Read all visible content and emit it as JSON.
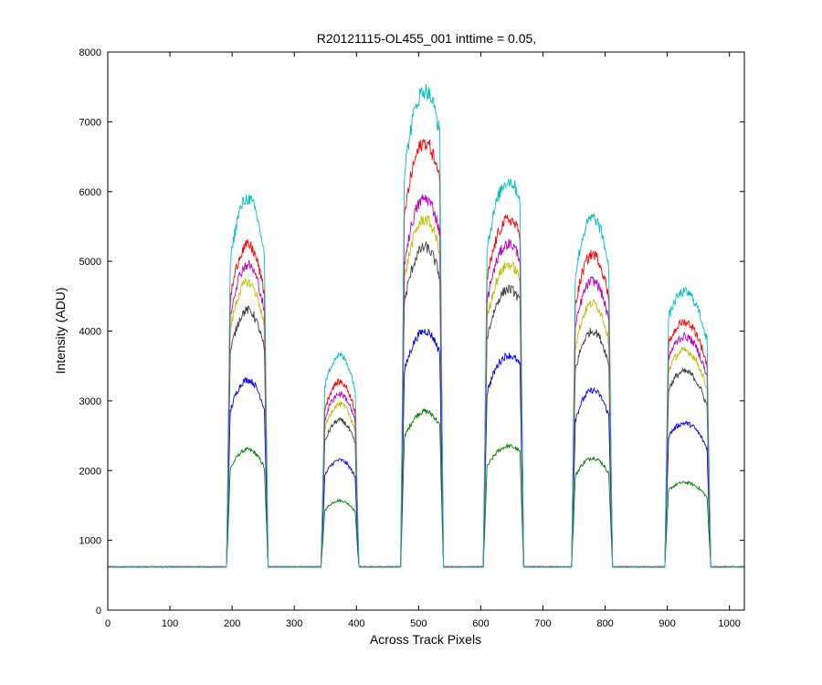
{
  "chart_data": {
    "type": "line",
    "title": "R20121115-OL455_001 inttime = 0.05,",
    "xlabel": "Across Track Pixels",
    "ylabel": "Intensity (ADU)",
    "xlim": [
      0,
      1024
    ],
    "ylim": [
      0,
      8000
    ],
    "x_ticks": [
      0,
      100,
      200,
      300,
      400,
      500,
      600,
      700,
      800,
      900,
      1000
    ],
    "y_ticks": [
      0,
      1000,
      2000,
      3000,
      4000,
      5000,
      6000,
      7000,
      8000
    ],
    "grid": false,
    "legend": "none",
    "baseline": 620,
    "segments": [
      {
        "start": 193,
        "end": 256,
        "center": 225
      },
      {
        "start": 345,
        "end": 402,
        "center": 373
      },
      {
        "start": 473,
        "end": 538,
        "center": 510
      },
      {
        "start": 606,
        "end": 667,
        "center": 645
      },
      {
        "start": 748,
        "end": 810,
        "center": 780
      },
      {
        "start": 898,
        "end": 968,
        "center": 928
      }
    ],
    "series": [
      {
        "color": "#008000",
        "peaks": [
          2300,
          1570,
          2850,
          2350,
          2180,
          1830
        ]
      },
      {
        "color": "#0000ff",
        "peaks": [
          3300,
          2150,
          4000,
          3650,
          3150,
          2680
        ]
      },
      {
        "color": "#404040",
        "peaks": [
          4300,
          2720,
          5200,
          4600,
          4000,
          3420
        ]
      },
      {
        "color": "#bfbf00",
        "peaks": [
          4700,
          2950,
          5600,
          4950,
          4400,
          3720
        ]
      },
      {
        "color": "#bf00bf",
        "peaks": [
          4950,
          3100,
          5900,
          5250,
          4720,
          3920
        ]
      },
      {
        "color": "#ff0000",
        "peaks": [
          5230,
          3270,
          6700,
          5600,
          5100,
          4130
        ]
      },
      {
        "color": "#00bfbf",
        "peaks": [
          5900,
          3650,
          7450,
          6150,
          5620,
          4560
        ]
      }
    ]
  }
}
